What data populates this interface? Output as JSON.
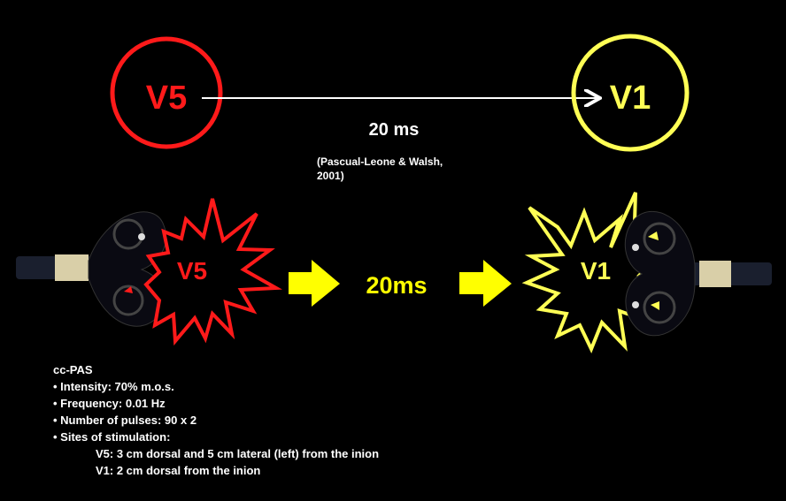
{
  "top": {
    "source_label": "V5",
    "target_label": "V1",
    "delay": "20 ms",
    "citation_line1": "(Pascual-Leone & Walsh,",
    "citation_line2": "2001)"
  },
  "bottom": {
    "source_label": "V5",
    "target_label": "V1",
    "delay": "20ms"
  },
  "colors": {
    "source": "#ff1a1a",
    "target": "#ffff55",
    "arrow": "#ffff00",
    "coil": "#0a0a12"
  },
  "protocol": {
    "title": "cc-PAS",
    "items": [
      "• Intensity: 70% m.o.s.",
      "• Frequency: 0.01 Hz",
      "• Number of pulses: 90 x 2",
      "• Sites of stimulation:"
    ],
    "sites": [
      "V5: 3 cm dorsal and 5 cm lateral (left) from the inion",
      "V1: 2 cm dorsal from the inion"
    ]
  }
}
